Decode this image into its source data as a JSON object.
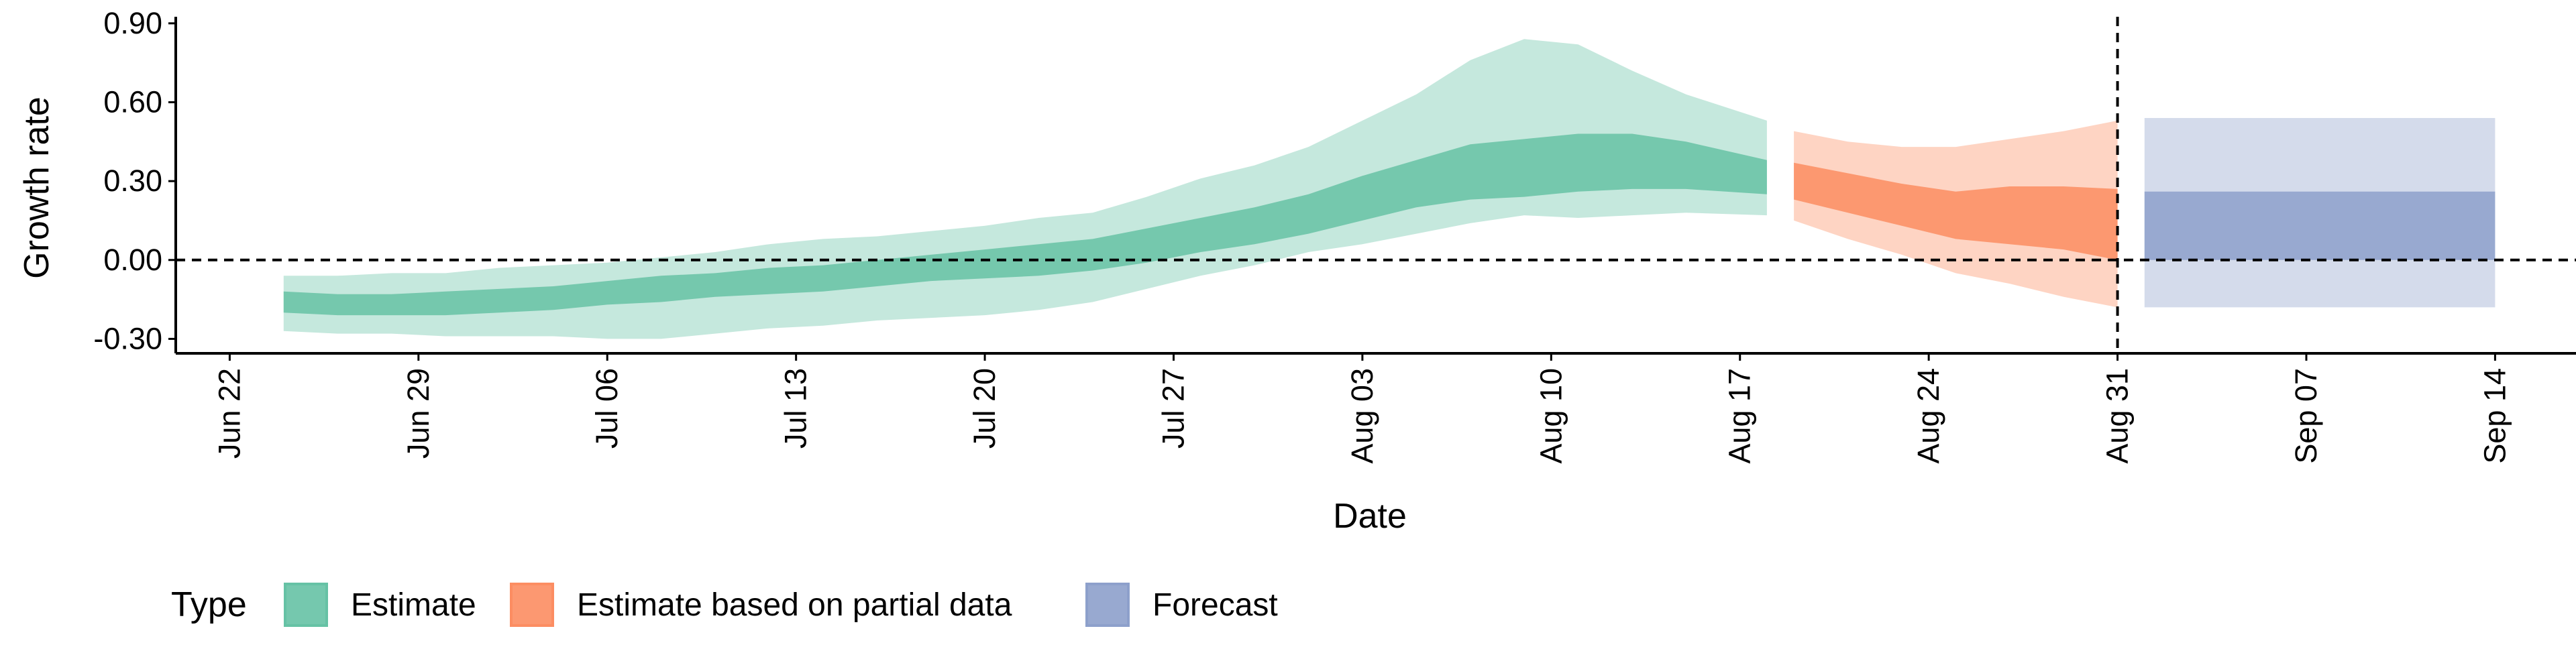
{
  "chart_data": {
    "type": "area",
    "title": "",
    "xlabel": "Date",
    "ylabel": "Growth rate",
    "x_range": [
      "2020-06-20",
      "2020-09-17"
    ],
    "ylim": [
      -0.355,
      0.925
    ],
    "y_ticks": [
      -0.3,
      0.0,
      0.3,
      0.6,
      0.9
    ],
    "y_tick_labels": [
      "-0.30",
      "0.00",
      "0.30",
      "0.60",
      "0.90"
    ],
    "x_ticks": [
      "2020-06-22",
      "2020-06-29",
      "2020-07-06",
      "2020-07-13",
      "2020-07-20",
      "2020-07-27",
      "2020-08-03",
      "2020-08-10",
      "2020-08-17",
      "2020-08-24",
      "2020-08-31",
      "2020-09-07",
      "2020-09-14"
    ],
    "x_tick_labels": [
      "Jun 22",
      "Jun 29",
      "Jul 06",
      "Jul 13",
      "Jul 20",
      "Jul 27",
      "Aug 03",
      "Aug 10",
      "Aug 17",
      "Aug 24",
      "Aug 31",
      "Sep 07",
      "Sep 14"
    ],
    "grid": false,
    "reference_lines": [
      {
        "orientation": "horizontal",
        "y": 0.0,
        "style": "dashed"
      },
      {
        "orientation": "vertical",
        "x": "2020-08-31",
        "style": "dashed"
      }
    ],
    "legend": {
      "title": "Type",
      "position": "bottom-left",
      "entries": [
        "Estimate",
        "Estimate based on partial data",
        "Forecast"
      ]
    },
    "series": [
      {
        "name": "Estimate",
        "color": "#66c2a5",
        "points": [
          {
            "x": "2020-06-24",
            "outer_low": -0.27,
            "inner_low": -0.2,
            "inner_high": -0.12,
            "outer_high": -0.06
          },
          {
            "x": "2020-06-26",
            "outer_low": -0.28,
            "inner_low": -0.21,
            "inner_high": -0.13,
            "outer_high": -0.06
          },
          {
            "x": "2020-06-28",
            "outer_low": -0.28,
            "inner_low": -0.21,
            "inner_high": -0.13,
            "outer_high": -0.05
          },
          {
            "x": "2020-06-30",
            "outer_low": -0.29,
            "inner_low": -0.21,
            "inner_high": -0.12,
            "outer_high": -0.05
          },
          {
            "x": "2020-07-02",
            "outer_low": -0.29,
            "inner_low": -0.2,
            "inner_high": -0.11,
            "outer_high": -0.03
          },
          {
            "x": "2020-07-04",
            "outer_low": -0.29,
            "inner_low": -0.19,
            "inner_high": -0.1,
            "outer_high": -0.02
          },
          {
            "x": "2020-07-06",
            "outer_low": -0.3,
            "inner_low": -0.17,
            "inner_high": -0.08,
            "outer_high": -0.01
          },
          {
            "x": "2020-07-08",
            "outer_low": -0.3,
            "inner_low": -0.16,
            "inner_high": -0.06,
            "outer_high": 0.01
          },
          {
            "x": "2020-07-10",
            "outer_low": -0.28,
            "inner_low": -0.14,
            "inner_high": -0.05,
            "outer_high": 0.03
          },
          {
            "x": "2020-07-12",
            "outer_low": -0.26,
            "inner_low": -0.13,
            "inner_high": -0.03,
            "outer_high": 0.06
          },
          {
            "x": "2020-07-14",
            "outer_low": -0.25,
            "inner_low": -0.12,
            "inner_high": -0.02,
            "outer_high": 0.08
          },
          {
            "x": "2020-07-16",
            "outer_low": -0.23,
            "inner_low": -0.1,
            "inner_high": 0.0,
            "outer_high": 0.09
          },
          {
            "x": "2020-07-18",
            "outer_low": -0.22,
            "inner_low": -0.08,
            "inner_high": 0.02,
            "outer_high": 0.11
          },
          {
            "x": "2020-07-20",
            "outer_low": -0.21,
            "inner_low": -0.07,
            "inner_high": 0.04,
            "outer_high": 0.13
          },
          {
            "x": "2020-07-22",
            "outer_low": -0.19,
            "inner_low": -0.06,
            "inner_high": 0.06,
            "outer_high": 0.16
          },
          {
            "x": "2020-07-24",
            "outer_low": -0.16,
            "inner_low": -0.04,
            "inner_high": 0.08,
            "outer_high": 0.18
          },
          {
            "x": "2020-07-26",
            "outer_low": -0.11,
            "inner_low": -0.01,
            "inner_high": 0.12,
            "outer_high": 0.24
          },
          {
            "x": "2020-07-28",
            "outer_low": -0.06,
            "inner_low": 0.03,
            "inner_high": 0.16,
            "outer_high": 0.31
          },
          {
            "x": "2020-07-30",
            "outer_low": -0.02,
            "inner_low": 0.06,
            "inner_high": 0.2,
            "outer_high": 0.36
          },
          {
            "x": "2020-08-01",
            "outer_low": 0.03,
            "inner_low": 0.1,
            "inner_high": 0.25,
            "outer_high": 0.43
          },
          {
            "x": "2020-08-03",
            "outer_low": 0.06,
            "inner_low": 0.15,
            "inner_high": 0.32,
            "outer_high": 0.53
          },
          {
            "x": "2020-08-05",
            "outer_low": 0.1,
            "inner_low": 0.2,
            "inner_high": 0.38,
            "outer_high": 0.63
          },
          {
            "x": "2020-08-07",
            "outer_low": 0.14,
            "inner_low": 0.23,
            "inner_high": 0.44,
            "outer_high": 0.76
          },
          {
            "x": "2020-08-09",
            "outer_low": 0.17,
            "inner_low": 0.24,
            "inner_high": 0.46,
            "outer_high": 0.84
          },
          {
            "x": "2020-08-11",
            "outer_low": 0.16,
            "inner_low": 0.26,
            "inner_high": 0.48,
            "outer_high": 0.82
          },
          {
            "x": "2020-08-13",
            "outer_low": 0.17,
            "inner_low": 0.27,
            "inner_high": 0.48,
            "outer_high": 0.72
          },
          {
            "x": "2020-08-15",
            "outer_low": 0.18,
            "inner_low": 0.27,
            "inner_high": 0.45,
            "outer_high": 0.63
          },
          {
            "x": "2020-08-18",
            "outer_low": 0.17,
            "inner_low": 0.25,
            "inner_high": 0.38,
            "outer_high": 0.53
          }
        ]
      },
      {
        "name": "Estimate based on partial data",
        "color": "#fc8d62",
        "points": [
          {
            "x": "2020-08-19",
            "outer_low": 0.15,
            "inner_low": 0.23,
            "inner_high": 0.37,
            "outer_high": 0.49
          },
          {
            "x": "2020-08-21",
            "outer_low": 0.08,
            "inner_low": 0.18,
            "inner_high": 0.33,
            "outer_high": 0.45
          },
          {
            "x": "2020-08-23",
            "outer_low": 0.02,
            "inner_low": 0.13,
            "inner_high": 0.29,
            "outer_high": 0.43
          },
          {
            "x": "2020-08-25",
            "outer_low": -0.05,
            "inner_low": 0.08,
            "inner_high": 0.26,
            "outer_high": 0.43
          },
          {
            "x": "2020-08-27",
            "outer_low": -0.09,
            "inner_low": 0.06,
            "inner_high": 0.28,
            "outer_high": 0.46
          },
          {
            "x": "2020-08-29",
            "outer_low": -0.14,
            "inner_low": 0.04,
            "inner_high": 0.28,
            "outer_high": 0.49
          },
          {
            "x": "2020-08-31",
            "outer_low": -0.18,
            "inner_low": 0.0,
            "inner_high": 0.27,
            "outer_high": 0.53
          }
        ]
      },
      {
        "name": "Forecast",
        "color": "#8da0cb",
        "points": [
          {
            "x": "2020-09-01",
            "outer_low": -0.18,
            "inner_low": 0.0,
            "inner_high": 0.26,
            "outer_high": 0.54
          },
          {
            "x": "2020-09-14",
            "outer_low": -0.18,
            "inner_low": 0.0,
            "inner_high": 0.26,
            "outer_high": 0.54
          }
        ]
      }
    ]
  }
}
